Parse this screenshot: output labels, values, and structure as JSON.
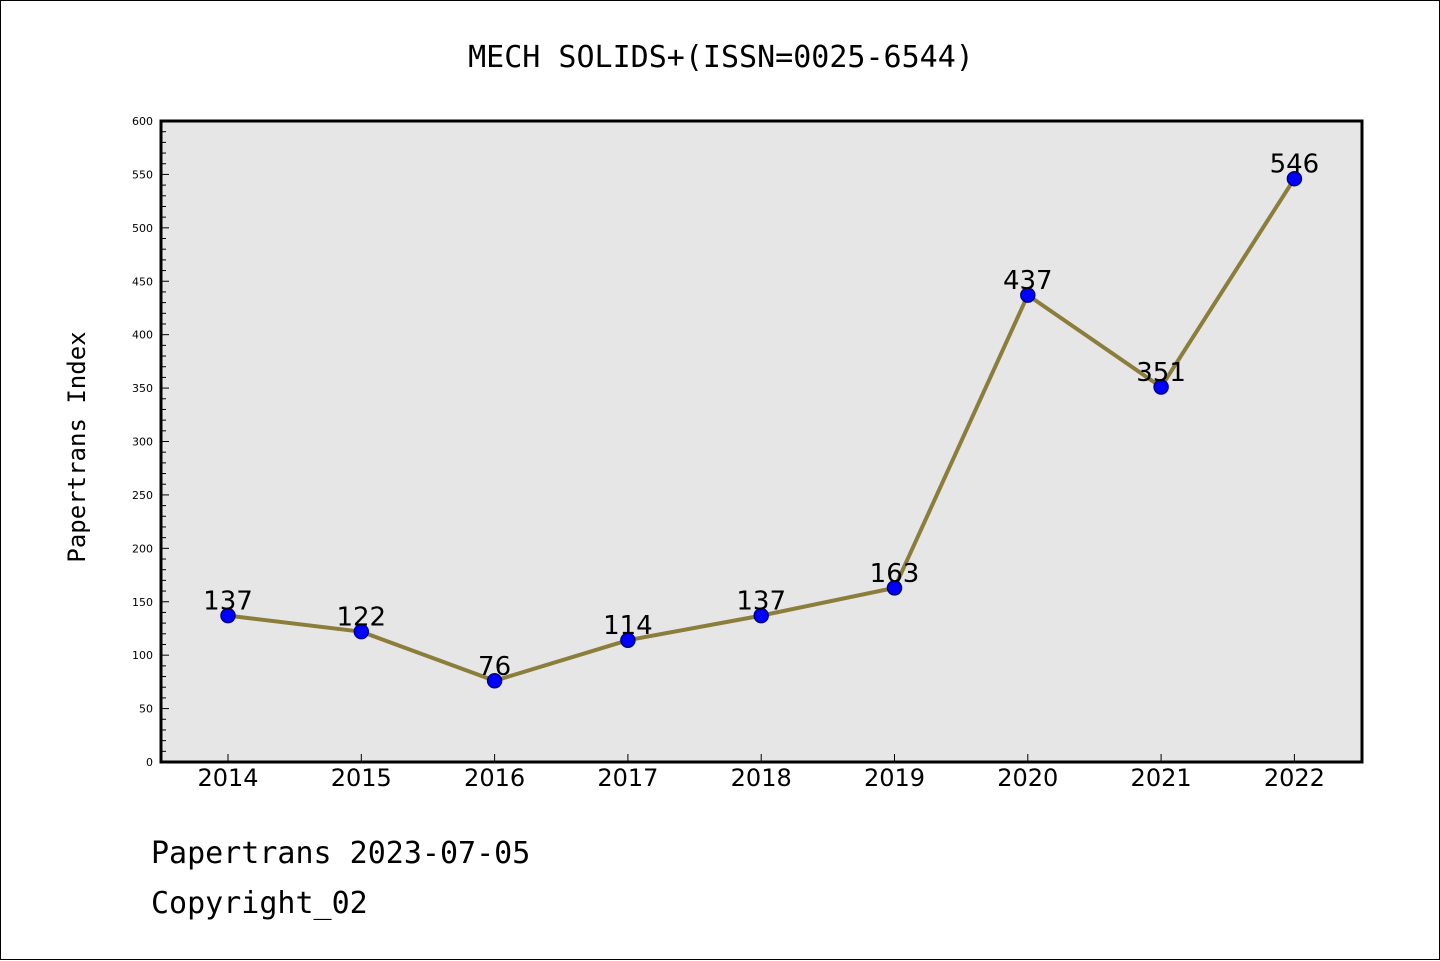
{
  "chart_data": {
    "type": "line",
    "title": "MECH SOLIDS+(ISSN=0025-6544)",
    "xlabel": "",
    "ylabel": "Papertrans Index",
    "categories": [
      "2014",
      "2015",
      "2016",
      "2017",
      "2018",
      "2019",
      "2020",
      "2021",
      "2022"
    ],
    "series": [
      {
        "values": [
          137,
          122,
          76,
          114,
          137,
          163,
          437,
          351,
          546
        ]
      }
    ],
    "data_labels": [
      "137",
      "122",
      "76",
      "114",
      "137",
      "163",
      "437",
      "351",
      "546"
    ],
    "ylim": [
      0,
      600
    ],
    "yticks": [
      0,
      50,
      100,
      150,
      200,
      250,
      300,
      350,
      400,
      450,
      500,
      550,
      600
    ],
    "ytick_labels": [
      "0",
      "50",
      "100",
      "150",
      "200",
      "250",
      "300",
      "350",
      "400",
      "450",
      "500",
      "550",
      "600"
    ],
    "grid": false,
    "legend": "none",
    "colors": {
      "line": "#8B7D3A",
      "marker_fill": "#0000FF",
      "marker_edge": "#000080",
      "plot_background": "#E6E6E6"
    }
  },
  "footer": {
    "line1": "Papertrans 2023-07-05",
    "line2": "Copyright_02"
  }
}
